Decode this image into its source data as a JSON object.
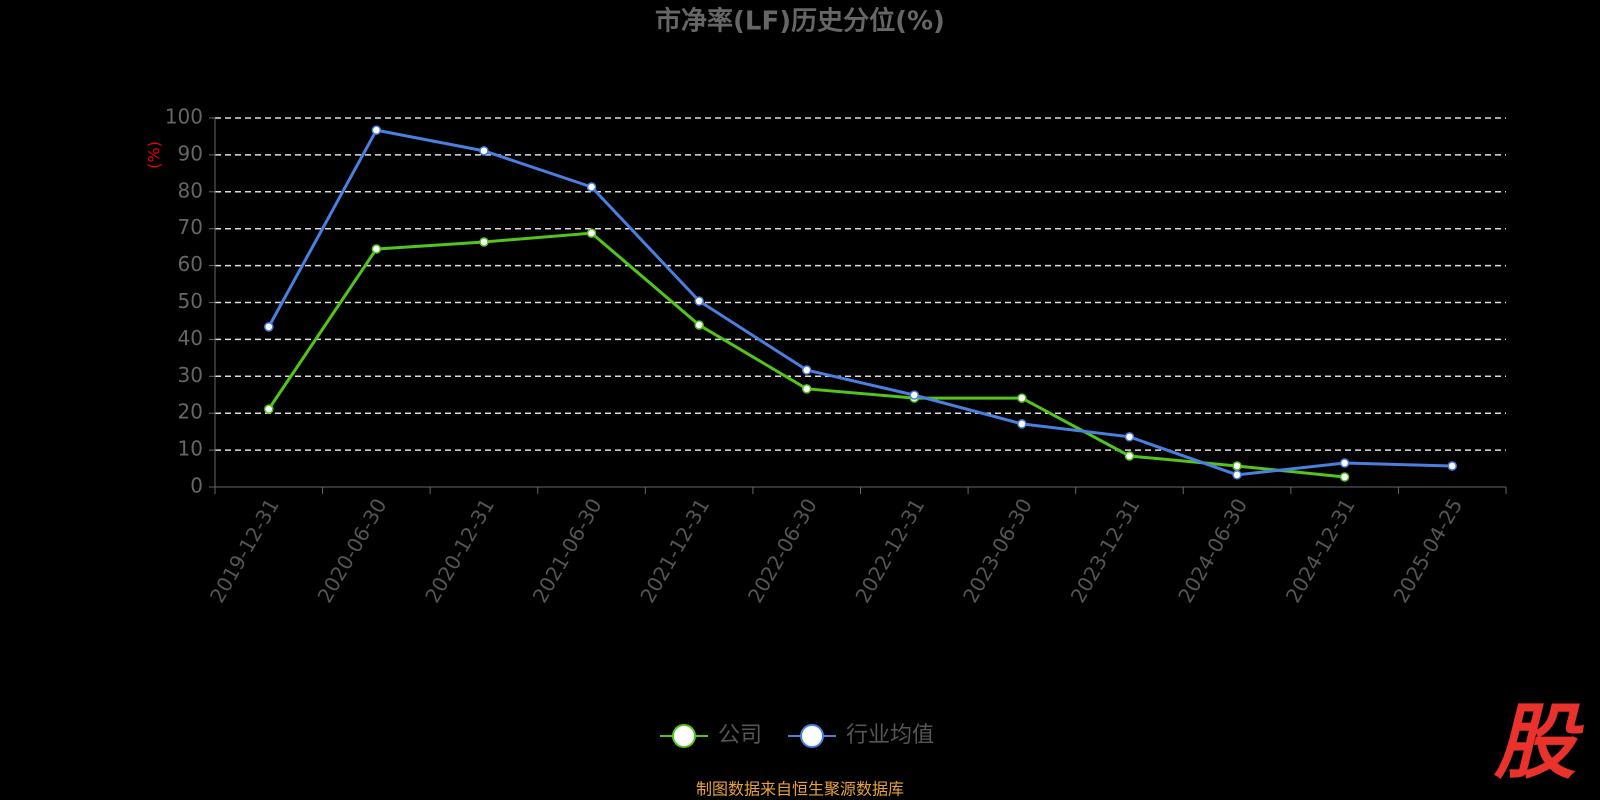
{
  "chart_data": {
    "type": "line",
    "title": "市净率(LF)历史分位(%)",
    "y_label": "(%)",
    "categories": [
      "2019-12-31",
      "2020-06-30",
      "2020-12-31",
      "2021-06-30",
      "2021-12-31",
      "2022-06-30",
      "2022-12-31",
      "2023-06-30",
      "2023-12-31",
      "2024-06-30",
      "2024-12-31",
      "2025-04-25"
    ],
    "series": [
      {
        "name": "公司",
        "color": "#52c41a",
        "values": [
          21.1,
          64.5,
          66.4,
          68.8,
          43.9,
          26.6,
          24.1,
          24.1,
          8.4,
          5.7,
          2.7,
          null
        ]
      },
      {
        "name": "行业均值",
        "color": "#4a7fe0",
        "values": [
          43.4,
          96.7,
          91.1,
          81.3,
          50.4,
          31.7,
          24.9,
          17.1,
          13.6,
          3.3,
          6.5,
          5.7
        ]
      }
    ],
    "ylim": [
      0,
      100
    ],
    "yticks": [
      0,
      10,
      20,
      30,
      40,
      50,
      60,
      70,
      80,
      90,
      100
    ],
    "grid": true,
    "legend": "bottom",
    "source": "制图数据来自恒生聚源数据库",
    "logo": "股"
  }
}
